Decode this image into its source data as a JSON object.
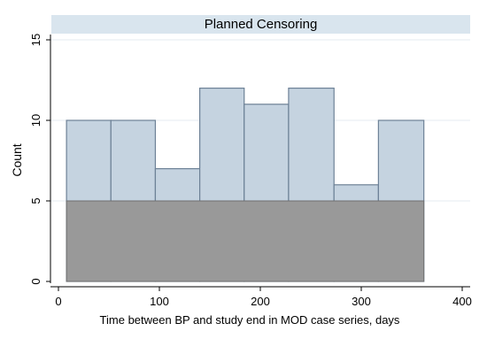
{
  "chart_data": {
    "type": "bar",
    "title": "Planned Censoring",
    "xlabel": "Time between BP and study end in MOD case series, days",
    "ylabel": "Count",
    "xlim": [
      0,
      400
    ],
    "ylim": [
      0,
      15
    ],
    "x_ticks": [
      0,
      100,
      200,
      300,
      400
    ],
    "y_ticks": [
      0,
      5,
      10,
      15
    ],
    "grid": "horizontal",
    "legend": "none",
    "bins": [
      {
        "x0": 8,
        "x1": 52,
        "value": 10
      },
      {
        "x0": 52,
        "x1": 96,
        "value": 10
      },
      {
        "x0": 96,
        "x1": 140,
        "value": 7
      },
      {
        "x0": 140,
        "x1": 184,
        "value": 12
      },
      {
        "x0": 184,
        "x1": 228,
        "value": 11
      },
      {
        "x0": 228,
        "x1": 273,
        "value": 12
      },
      {
        "x0": 273,
        "x1": 317,
        "value": 6
      },
      {
        "x0": 317,
        "x1": 362,
        "value": 10
      }
    ],
    "shaded_band": {
      "x0": 8,
      "x1": 362,
      "y0": 0,
      "y1": 5
    },
    "colors": {
      "bar_fill": "#c5d3e0",
      "bar_stroke": "#6d8196",
      "band_fill": "#999999",
      "band_stroke": "#6f6f6f",
      "title_strip": "#d9e5ee",
      "grid": "#e4ebf0",
      "axis": "#000000"
    }
  }
}
